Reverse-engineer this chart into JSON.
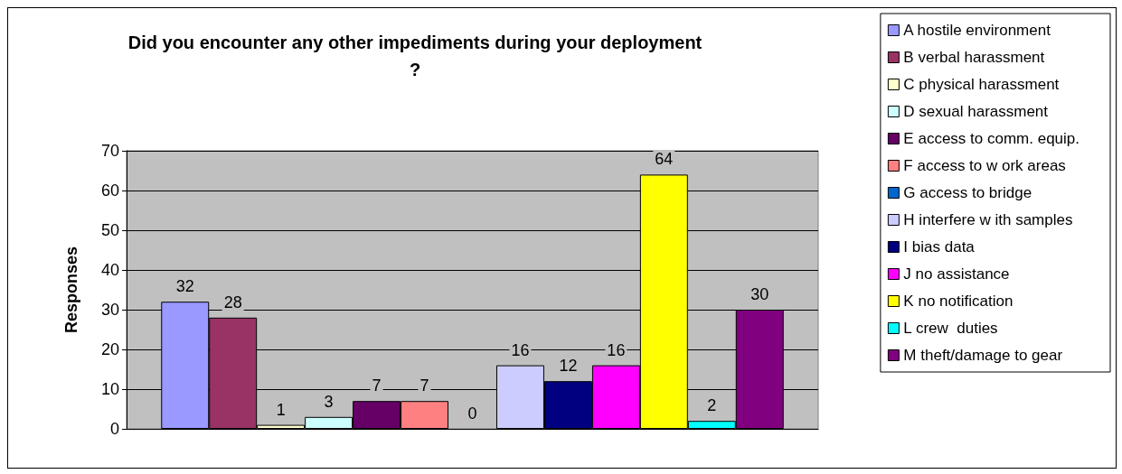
{
  "chart_data": {
    "type": "bar",
    "title": "Did you encounter any other impediments during your deployment?",
    "ylabel": "Responses",
    "categories": [
      null
    ],
    "series": [
      {
        "name": "A hostile environment",
        "color": "#9999ff",
        "values": [
          32
        ]
      },
      {
        "name": "B verbal harassment",
        "color": "#993366",
        "values": [
          28
        ]
      },
      {
        "name": "C physical harassment",
        "color": "#ffffcc",
        "values": [
          1
        ]
      },
      {
        "name": "D sexual harassment",
        "color": "#ccffff",
        "values": [
          3
        ]
      },
      {
        "name": "E access to comm. equip.",
        "color": "#660066",
        "values": [
          7
        ]
      },
      {
        "name": "F access to w ork areas",
        "color": "#ff8080",
        "values": [
          7
        ]
      },
      {
        "name": "G access to bridge",
        "color": "#0066cc",
        "values": [
          0
        ]
      },
      {
        "name": "H interfere w ith samples",
        "color": "#ccccff",
        "values": [
          16
        ]
      },
      {
        "name": "I bias data",
        "color": "#000080",
        "values": [
          12
        ]
      },
      {
        "name": "J no assistance",
        "color": "#ff00ff",
        "values": [
          16
        ]
      },
      {
        "name": "K no notification",
        "color": "#ffff00",
        "values": [
          64
        ]
      },
      {
        "name": "L crew  duties",
        "color": "#00ffff",
        "values": [
          2
        ]
      },
      {
        "name": "M theft/damage to gear",
        "color": "#800080",
        "values": [
          30
        ]
      }
    ],
    "ylim": [
      0,
      70
    ],
    "yticks": [
      0,
      10,
      20,
      30,
      40,
      50,
      60,
      70
    ],
    "grid": "y",
    "legend": "right",
    "data_labels": true
  }
}
